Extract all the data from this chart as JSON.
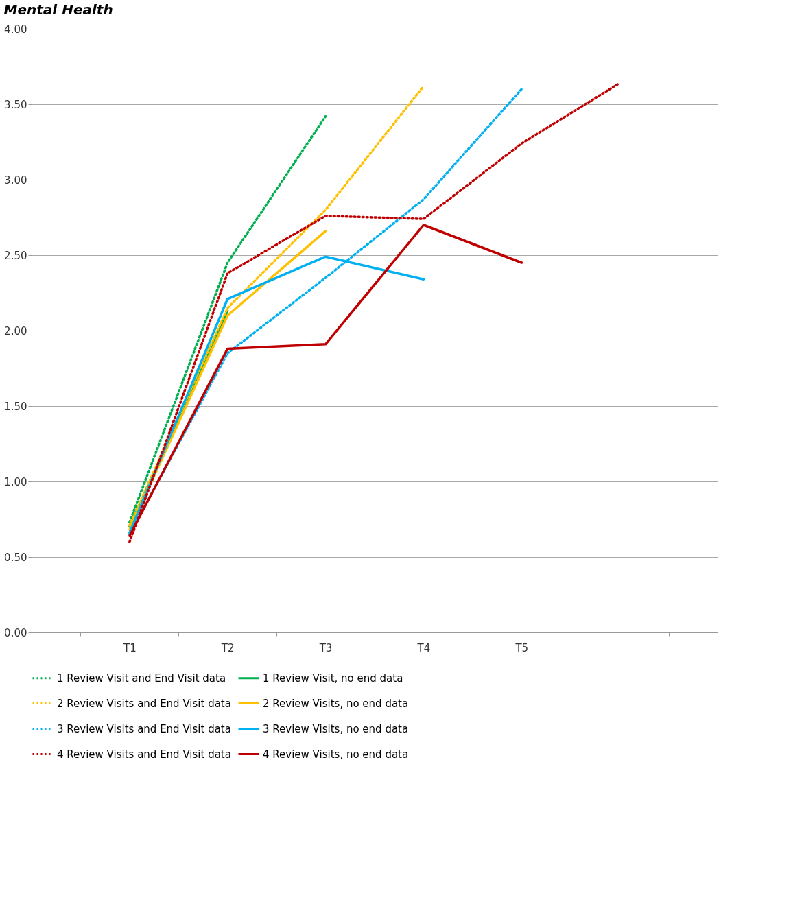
{
  "chart_data": {
    "type": "line",
    "title": "Mental Health",
    "categories": [
      "T1",
      "T2",
      "T3",
      "T4",
      "T5",
      null
    ],
    "series": [
      {
        "name": "1 Review Visit and End Visit data",
        "color": "#00b050",
        "line_style": "dotted",
        "values": [
          0.73,
          2.45,
          3.42,
          null,
          null,
          null
        ]
      },
      {
        "name": "1 Review Visit, no end data",
        "color": "#00b050",
        "line_style": "solid",
        "values": [
          0.7,
          2.13,
          null,
          null,
          null,
          null
        ]
      },
      {
        "name": "2 Review Visits and End Visit data",
        "color": "#ffc000",
        "line_style": "dotted",
        "values": [
          0.71,
          2.15,
          2.8,
          3.62,
          null,
          null
        ]
      },
      {
        "name": "2 Review Visits, no end data",
        "color": "#ffc000",
        "line_style": "solid",
        "values": [
          0.68,
          2.1,
          2.66,
          null,
          null,
          null
        ]
      },
      {
        "name": "3 Review Visits and End Visit data",
        "color": "#00b0f0",
        "line_style": "dotted",
        "values": [
          0.65,
          1.85,
          2.35,
          2.87,
          3.6,
          null
        ]
      },
      {
        "name": "3 Review Visits, no end data",
        "color": "#00b0f0",
        "line_style": "solid",
        "values": [
          0.66,
          2.21,
          2.49,
          2.34,
          null,
          null
        ]
      },
      {
        "name": "4 Review Visits and End Visit data",
        "color": "#c00000",
        "line_style": "dotted",
        "values": [
          0.6,
          2.38,
          2.76,
          2.74,
          3.24,
          3.64
        ]
      },
      {
        "name": "4 Review Visits, no end data",
        "color": "#c00000",
        "line_style": "solid",
        "values": [
          0.64,
          1.88,
          1.91,
          2.7,
          2.45,
          null
        ]
      }
    ],
    "ylim": [
      0,
      4
    ],
    "yticks": [
      {
        "value": 0,
        "label": "0.00"
      },
      {
        "value": 0.5,
        "label": "0.50"
      },
      {
        "value": 1,
        "label": "1.00"
      },
      {
        "value": 1.5,
        "label": "1.50"
      },
      {
        "value": 2,
        "label": "2.00"
      },
      {
        "value": 2.5,
        "label": "2.50"
      },
      {
        "value": 3,
        "label": "3.00"
      },
      {
        "value": 3.5,
        "label": "3.50"
      },
      {
        "value": 4,
        "label": "4.00"
      }
    ],
    "grid": "y",
    "legend": "bottom",
    "marker": "none"
  }
}
